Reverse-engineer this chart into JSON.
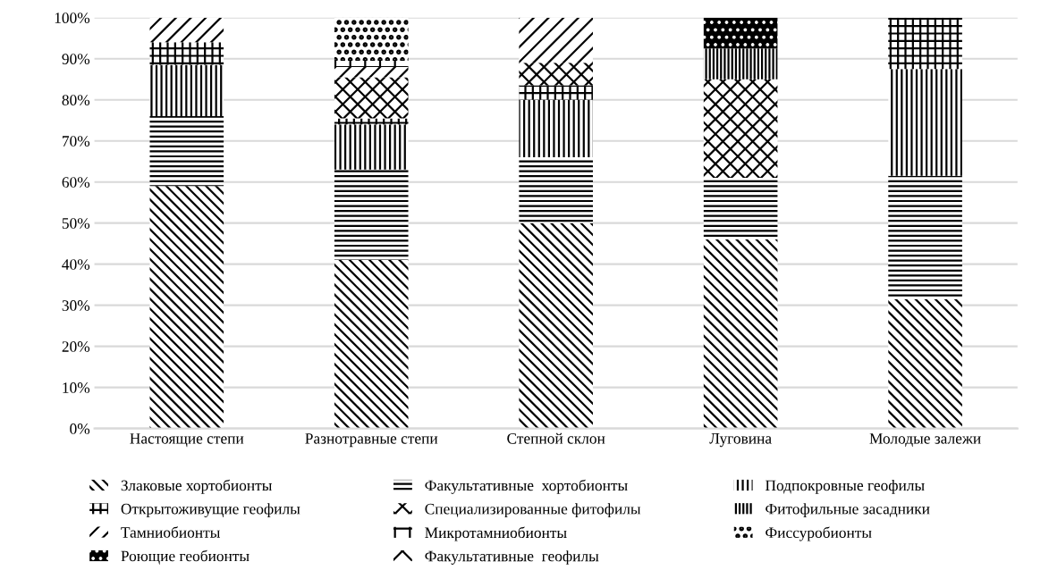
{
  "chart_data": {
    "type": "bar",
    "stacked": true,
    "categories": [
      "Настоящие степи",
      "Разнотравные степи",
      "Степной склон",
      "Луговина",
      "Молодые залежи"
    ],
    "series": [
      {
        "name": "Злаковые хортобионты",
        "color": "#000000",
        "values": [
          59,
          41,
          50,
          46,
          31.5
        ]
      },
      {
        "name": "Факультативные  хортобионты",
        "color": "#000000",
        "values": [
          17,
          22,
          16,
          15,
          30
        ]
      },
      {
        "name": "Подпокровные геофилы",
        "color": "#000000",
        "values": [
          12.5,
          11,
          14,
          0,
          26
        ]
      },
      {
        "name": "Открытоживущие геофилы",
        "color": "#000000",
        "values": [
          5.5,
          1.5,
          3.5,
          0,
          12.5
        ]
      },
      {
        "name": "Специализированные фитофилы",
        "color": "#000000",
        "values": [
          0,
          10,
          5.5,
          24,
          0
        ]
      },
      {
        "name": "Фитофильные засадники",
        "color": "#000000",
        "values": [
          0,
          0,
          0,
          7.5,
          0
        ]
      },
      {
        "name": "Тамниобионты",
        "color": "#000000",
        "values": [
          6,
          2.5,
          11,
          0,
          0
        ]
      },
      {
        "name": "Микротамниобионты",
        "color": "#000000",
        "values": [
          0,
          1.5,
          0,
          0,
          0
        ]
      },
      {
        "name": "Фиссуробионты",
        "color": "#000000",
        "values": [
          0,
          10.5,
          0,
          0,
          0
        ]
      },
      {
        "name": "Роющие геобионты",
        "color": "#000000",
        "values": [
          0,
          0,
          0,
          7.5,
          0
        ]
      },
      {
        "name": "Факультативные  геофилы",
        "color": "#000000",
        "values": [
          0,
          0,
          0,
          0,
          0
        ]
      }
    ],
    "ylim": [
      0,
      100
    ],
    "yticks": [
      {
        "value": 0,
        "label": "0%"
      },
      {
        "value": 10,
        "label": "10%"
      },
      {
        "value": 20,
        "label": "20%"
      },
      {
        "value": 30,
        "label": "30%"
      },
      {
        "value": 40,
        "label": "40%"
      },
      {
        "value": 50,
        "label": "50%"
      },
      {
        "value": 60,
        "label": "60%"
      },
      {
        "value": 70,
        "label": "70%"
      },
      {
        "value": 80,
        "label": "80%"
      },
      {
        "value": 90,
        "label": "90%"
      },
      {
        "value": 100,
        "label": "100%"
      }
    ],
    "grid": "y",
    "legend": "bottom"
  }
}
